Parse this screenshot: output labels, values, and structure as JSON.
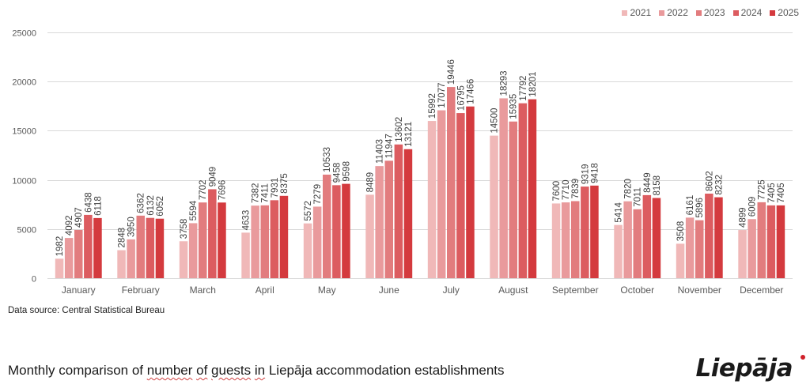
{
  "chart_data": {
    "type": "bar",
    "title": "Monthly comparison of number of guests in Liepāja accommodation establishments",
    "xlabel": "",
    "ylabel": "",
    "ylim": [
      0,
      25000
    ],
    "yticks": [
      0,
      5000,
      10000,
      15000,
      20000,
      25000
    ],
    "grid": true,
    "legend_position": "top-right",
    "categories": [
      "January",
      "February",
      "March",
      "April",
      "May",
      "June",
      "July",
      "August",
      "September",
      "October",
      "November",
      "December"
    ],
    "series": [
      {
        "name": "2021",
        "color": "#f0b8b8",
        "values": [
          1982,
          2848,
          3758,
          4633,
          5572,
          8489,
          15992,
          14500,
          7600,
          5414,
          3508,
          4899
        ]
      },
      {
        "name": "2022",
        "color": "#e99a9c",
        "values": [
          4092,
          3950,
          5594,
          7382,
          7279,
          11403,
          17077,
          18293,
          7710,
          7820,
          6161,
          6009
        ]
      },
      {
        "name": "2023",
        "color": "#e27c7e",
        "values": [
          4907,
          6362,
          7702,
          7411,
          10533,
          11947,
          19446,
          15935,
          7839,
          7011,
          5896,
          7725
        ]
      },
      {
        "name": "2024",
        "color": "#dc5c60",
        "values": [
          6438,
          6132,
          9049,
          7931,
          9458,
          13602,
          16795,
          17792,
          9319,
          8449,
          8602,
          7405
        ]
      },
      {
        "name": "2025",
        "color": "#d43a3e",
        "values": [
          6118,
          6052,
          7696,
          8375,
          9598,
          13121,
          17466,
          18201,
          9418,
          8158,
          8232,
          7405
        ]
      }
    ]
  },
  "footer": {
    "source": "Data source: Central Statistical Bureau",
    "caption_parts": [
      "Monthly comparison of ",
      "number",
      " ",
      "of",
      " ",
      "guests",
      " ",
      "in",
      " Liepāja accommodation establishments"
    ],
    "logo": "Liepāja"
  }
}
